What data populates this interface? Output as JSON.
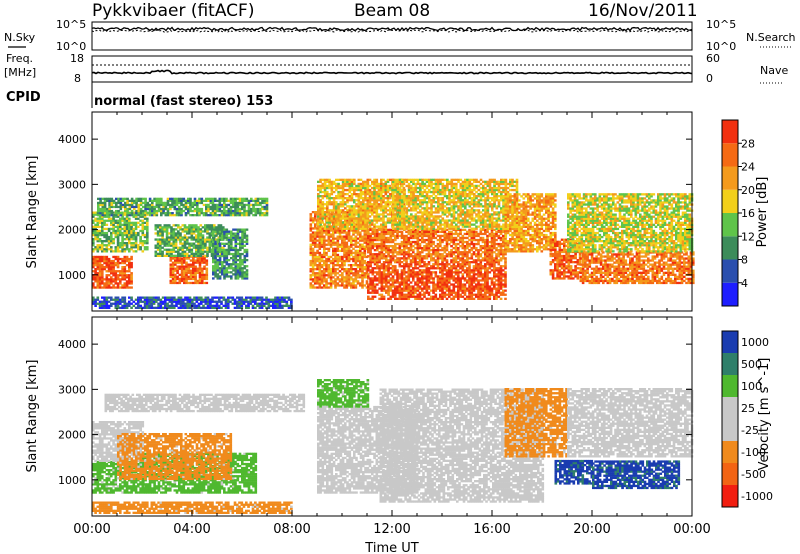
{
  "header": {
    "radar": "Pykkvibaer (fitACF)",
    "beam": "Beam 08",
    "date": "16/Nov/2011"
  },
  "strip_panel": {
    "left_label": "N.Sky",
    "right_label": "N.Search",
    "y_ticks": [
      "10^5",
      "10^0"
    ]
  },
  "freq_panel": {
    "left_label_top": "Freq.",
    "left_label_bottom": "[MHz]",
    "right_label": "Nave",
    "left_ticks": [
      "18",
      "8"
    ],
    "right_ticks": [
      "60",
      "0"
    ]
  },
  "cpid": {
    "label": "CPID",
    "value": "normal (fast stereo) 153"
  },
  "colors": {
    "power": [
      "#1e1eff",
      "#2a4fae",
      "#3c8c5a",
      "#5fc44a",
      "#f2cf1a",
      "#f49a1c",
      "#f56a14",
      "#f2300f"
    ],
    "velocity": [
      "#1a3cb0",
      "#2f7f6a",
      "#4fb82f",
      "#c8c8c8",
      "#c8c8c8",
      "#f08a1c",
      "#f26414",
      "#f21e10"
    ]
  },
  "chart_data": [
    {
      "type": "heatmap",
      "name": "power",
      "ylabel": "Slant Range [km]",
      "ylim": [
        200,
        4600
      ],
      "xlim": [
        0,
        24
      ],
      "y_ticks": [
        1000,
        2000,
        3000,
        4000
      ],
      "colorbar": {
        "label": "Power [dB]",
        "ticks": [
          4,
          8,
          12,
          16,
          20,
          24,
          28
        ],
        "range": [
          0,
          32
        ]
      },
      "echo_bands": [
        {
          "t0": 0.0,
          "t1": 1.6,
          "r0": 700,
          "r1": 1400,
          "v": 28
        },
        {
          "t0": 0.0,
          "t1": 2.2,
          "r0": 1500,
          "r1": 2400,
          "v": 14
        },
        {
          "t0": 0.2,
          "t1": 7.0,
          "r0": 2300,
          "r1": 2700,
          "v": 12
        },
        {
          "t0": 3.1,
          "t1": 4.6,
          "r0": 800,
          "r1": 1400,
          "v": 27
        },
        {
          "t0": 2.5,
          "t1": 5.2,
          "r0": 1400,
          "r1": 2100,
          "v": 13
        },
        {
          "t0": 4.8,
          "t1": 6.2,
          "r0": 900,
          "r1": 2000,
          "v": 11
        },
        {
          "t0": 8.7,
          "t1": 11.0,
          "r0": 700,
          "r1": 2400,
          "v": 24
        },
        {
          "t0": 9.0,
          "t1": 12.5,
          "r0": 2000,
          "r1": 3100,
          "v": 20
        },
        {
          "t0": 11.0,
          "t1": 16.5,
          "r0": 450,
          "r1": 1300,
          "v": 28
        },
        {
          "t0": 11.0,
          "t1": 16.5,
          "r0": 1300,
          "r1": 2000,
          "v": 25
        },
        {
          "t0": 12.0,
          "t1": 17.0,
          "r0": 2000,
          "r1": 3100,
          "v": 19
        },
        {
          "t0": 16.5,
          "t1": 18.5,
          "r0": 1500,
          "r1": 2800,
          "v": 22
        },
        {
          "t0": 18.3,
          "t1": 19.5,
          "r0": 900,
          "r1": 1800,
          "v": 27
        },
        {
          "t0": 19.5,
          "t1": 24.0,
          "r0": 800,
          "r1": 1500,
          "v": 25
        },
        {
          "t0": 19.0,
          "t1": 24.0,
          "r0": 1500,
          "r1": 2800,
          "v": 17
        },
        {
          "t0": 0.0,
          "t1": 8.0,
          "r0": 250,
          "r1": 500,
          "v": 6
        }
      ]
    },
    {
      "type": "heatmap",
      "name": "velocity",
      "ylabel": "Slant Range [km]",
      "xlabel": "Time UT",
      "ylim": [
        200,
        4600
      ],
      "xlim": [
        0,
        24
      ],
      "y_ticks": [
        1000,
        2000,
        3000,
        4000
      ],
      "x_ticks": [
        "00:00",
        "04:00",
        "08:00",
        "12:00",
        "16:00",
        "20:00",
        "00:00"
      ],
      "colorbar": {
        "label": "Velocity [m s^-1]",
        "ticks": [
          "1000",
          "500",
          "100",
          "25",
          "-25",
          "-100",
          "-500",
          "-1000"
        ]
      },
      "echo_bands": [
        {
          "t0": 0.0,
          "t1": 2.0,
          "r0": 700,
          "r1": 1400,
          "v": 100
        },
        {
          "t0": 0.0,
          "t1": 2.0,
          "r0": 1400,
          "r1": 2300,
          "v": 25
        },
        {
          "t0": 0.5,
          "t1": 8.5,
          "r0": 2500,
          "r1": 2900,
          "v": 25
        },
        {
          "t0": 2.0,
          "t1": 6.5,
          "r0": 700,
          "r1": 1600,
          "v": 100
        },
        {
          "t0": 1.0,
          "t1": 5.5,
          "r0": 1000,
          "r1": 2000,
          "v": -100
        },
        {
          "t0": 9.0,
          "t1": 13.0,
          "r0": 700,
          "r1": 2600,
          "v": 25
        },
        {
          "t0": 9.0,
          "t1": 11.0,
          "r0": 2600,
          "r1": 3200,
          "v": 100
        },
        {
          "t0": 11.5,
          "t1": 18.0,
          "r0": 500,
          "r1": 3000,
          "v": 25
        },
        {
          "t0": 16.5,
          "t1": 19.0,
          "r0": 1500,
          "r1": 3000,
          "v": -100
        },
        {
          "t0": 18.5,
          "t1": 20.0,
          "r0": 900,
          "r1": 1400,
          "v": 1000
        },
        {
          "t0": 20.0,
          "t1": 23.5,
          "r0": 800,
          "r1": 1400,
          "v": 1000
        },
        {
          "t0": 19.0,
          "t1": 24.0,
          "r0": 1500,
          "r1": 3000,
          "v": 25
        },
        {
          "t0": 0.0,
          "t1": 8.0,
          "r0": 250,
          "r1": 500,
          "v": -100
        }
      ]
    }
  ]
}
